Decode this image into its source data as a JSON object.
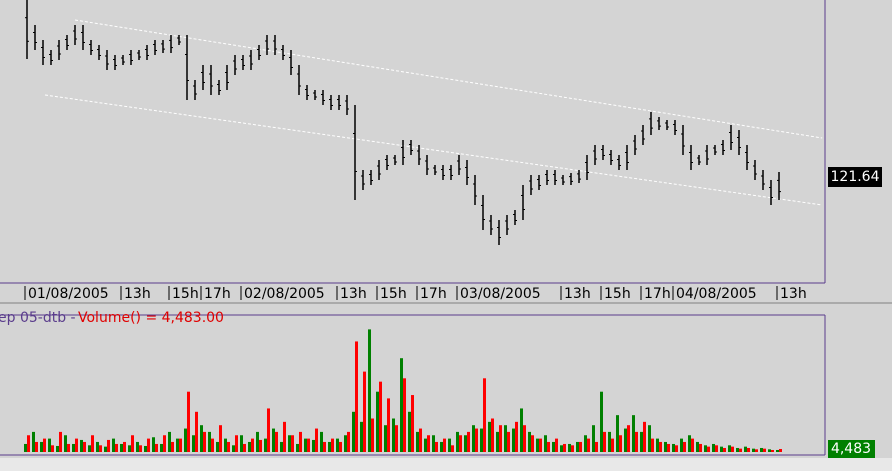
{
  "chart_data": [
    {
      "type": "hilo",
      "color": "#000000",
      "categories": [
        "01/08/2005",
        null,
        null,
        null,
        null,
        null,
        null,
        null,
        null,
        null,
        null,
        null,
        "13h",
        null,
        null,
        null,
        null,
        null,
        "15h",
        null,
        null,
        null,
        "17h",
        null,
        null,
        null,
        null,
        "02/08/2005",
        null,
        null,
        null,
        null,
        null,
        null,
        null,
        null,
        null,
        null,
        null,
        "13h",
        null,
        null,
        null,
        null,
        "15h",
        null,
        null,
        null,
        null,
        "17h",
        null,
        null,
        null,
        null,
        "03/08/2005",
        null,
        null,
        null,
        null,
        null,
        null,
        null,
        null,
        null,
        null,
        null,
        null,
        "13h",
        null,
        null,
        null,
        null,
        "15h",
        null,
        null,
        null,
        null,
        "17h",
        null,
        null,
        null,
        "04/08/2005",
        null,
        null,
        null,
        null,
        null,
        null,
        null,
        null,
        null,
        null,
        null,
        null,
        "13h"
      ],
      "high": [
        125.18,
        124.68,
        124.38,
        124.18,
        124.38,
        124.48,
        124.68,
        124.68,
        124.38,
        124.28,
        124.18,
        124.08,
        124.08,
        124.18,
        124.18,
        124.28,
        124.38,
        124.38,
        124.48,
        124.48,
        124.48,
        123.58,
        123.88,
        123.88,
        123.58,
        123.88,
        124.08,
        124.08,
        124.18,
        124.28,
        124.48,
        124.48,
        124.28,
        124.18,
        123.88,
        123.48,
        123.38,
        123.38,
        123.28,
        123.28,
        123.28,
        123.08,
        121.78,
        121.78,
        121.98,
        122.08,
        122.08,
        122.38,
        122.38,
        122.28,
        122.08,
        121.88,
        121.88,
        121.88,
        122.08,
        121.98,
        121.68,
        121.28,
        120.88,
        120.78,
        120.88,
        120.98,
        121.48,
        121.68,
        121.68,
        121.78,
        121.78,
        121.68,
        121.72,
        121.78,
        122.08,
        122.28,
        122.28,
        122.18,
        122.08,
        122.28,
        122.48,
        122.68,
        122.94,
        122.84,
        122.78,
        122.78,
        122.68,
        122.28,
        122.08,
        122.28,
        122.28,
        122.38,
        122.68,
        122.58,
        122.28,
        121.98,
        121.78,
        121.58,
        121.74
      ],
      "low": [
        124.0,
        124.18,
        123.88,
        123.88,
        123.98,
        124.18,
        124.28,
        124.18,
        124.08,
        123.98,
        123.78,
        123.78,
        123.88,
        123.88,
        123.98,
        123.98,
        124.08,
        124.12,
        124.12,
        124.28,
        123.18,
        123.18,
        123.38,
        123.28,
        123.28,
        123.38,
        123.68,
        123.78,
        123.78,
        123.98,
        124.08,
        124.08,
        123.98,
        123.68,
        123.28,
        123.18,
        123.18,
        123.08,
        122.98,
        122.98,
        122.88,
        121.18,
        121.38,
        121.48,
        121.58,
        121.78,
        121.88,
        121.88,
        122.08,
        121.88,
        121.68,
        121.68,
        121.58,
        121.58,
        121.68,
        121.48,
        121.08,
        120.58,
        120.48,
        120.28,
        120.48,
        120.68,
        120.78,
        121.28,
        121.38,
        121.48,
        121.48,
        121.48,
        121.48,
        121.52,
        121.58,
        121.88,
        121.98,
        121.88,
        121.78,
        121.78,
        122.08,
        122.28,
        122.48,
        122.58,
        122.58,
        122.48,
        122.08,
        121.78,
        121.88,
        121.88,
        122.08,
        122.08,
        122.18,
        122.08,
        121.78,
        121.58,
        121.38,
        121.08,
        121.18
      ],
      "ylim": [
        119.52,
        125.18
      ],
      "last_price": 121.64,
      "trendlines": [
        {
          "x": [
            6,
            99.4
          ],
          "y": [
            124.78,
            122.42
          ]
        },
        {
          "x": [
            2.25,
            99.4
          ],
          "y": [
            123.28,
            121.08
          ]
        }
      ]
    },
    {
      "type": "bar",
      "label_prefix": "ep 05-dtb -",
      "label": "Volume() = 4,483.00",
      "series": [
        {
          "color": "#008000",
          "values": [
            12000,
            30000,
            15000,
            20000,
            9000,
            25000,
            12000,
            18000,
            10000,
            15000,
            8000,
            20000,
            12000,
            10000,
            15000,
            9000,
            22000,
            12000,
            30000,
            20000,
            35000,
            25000,
            40000,
            30000,
            15000,
            20000,
            10000,
            25000,
            15000,
            30000,
            20000,
            35000,
            15000,
            25000,
            12000,
            20000,
            18000,
            30000,
            15000,
            20000,
            25000,
            60000,
            45000,
            183000,
            90000,
            40000,
            50000,
            140000,
            60000,
            30000,
            20000,
            25000,
            15000,
            20000,
            30000,
            25000,
            40000,
            35000,
            45000,
            30000,
            40000,
            35000,
            65000,
            30000,
            20000,
            25000,
            15000,
            10000,
            12000,
            15000,
            25000,
            40000,
            90000,
            30000,
            55000,
            35000,
            55000,
            30000,
            40000,
            20000,
            15000,
            12000,
            20000,
            25000,
            15000,
            10000,
            12000,
            8000,
            10000,
            6000,
            8000,
            5000,
            6000,
            4000,
            3000
          ]
        },
        {
          "color": "#ff0000",
          "values": [
            25000,
            15000,
            20000,
            10000,
            30000,
            12000,
            20000,
            15000,
            25000,
            10000,
            18000,
            12000,
            15000,
            25000,
            10000,
            20000,
            12000,
            25000,
            15000,
            20000,
            90000,
            60000,
            30000,
            20000,
            40000,
            15000,
            25000,
            12000,
            20000,
            18000,
            65000,
            30000,
            45000,
            25000,
            30000,
            20000,
            35000,
            15000,
            20000,
            15000,
            30000,
            165000,
            120000,
            50000,
            105000,
            80000,
            40000,
            110000,
            85000,
            35000,
            25000,
            15000,
            20000,
            10000,
            25000,
            30000,
            35000,
            110000,
            50000,
            40000,
            30000,
            45000,
            40000,
            25000,
            20000,
            15000,
            20000,
            12000,
            10000,
            15000,
            20000,
            15000,
            30000,
            20000,
            25000,
            40000,
            30000,
            45000,
            20000,
            15000,
            12000,
            10000,
            15000,
            20000,
            12000,
            8000,
            10000,
            6000,
            8000,
            5000,
            6000,
            4000,
            5000,
            3000,
            4483
          ]
        }
      ],
      "ylim": [
        0,
        200000
      ],
      "last_value": {
        "value": 4483,
        "label": "4,483"
      }
    }
  ]
}
